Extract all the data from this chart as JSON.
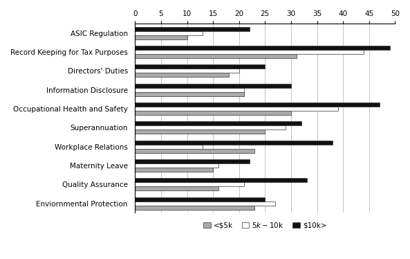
{
  "categories": [
    "ASIC Regulation",
    "Record Keeping for Tax Purposes",
    "Directors' Duties",
    "Information Disclosure",
    "Occupational Health and Safety",
    "Superannuation",
    "Workplace Relations",
    "Maternity Leave",
    "Quality Assurance",
    "Enviornmental Protection"
  ],
  "series": {
    "<$5k": [
      10,
      31,
      18,
      21,
      30,
      25,
      23,
      15,
      16,
      23
    ],
    "$5k-$10k": [
      13,
      44,
      20,
      21,
      39,
      29,
      13,
      16,
      21,
      27
    ],
    "$10k>": [
      22,
      49,
      25,
      30,
      47,
      32,
      38,
      22,
      33,
      25
    ]
  },
  "colors": {
    "<$5k": "#aaaaaa",
    "$5k-$10k": "#ffffff",
    "$10k>": "#111111"
  },
  "edgecolor": "#333333",
  "xlim": [
    0,
    50
  ],
  "xticks": [
    0,
    5,
    10,
    15,
    20,
    25,
    30,
    35,
    40,
    45,
    50
  ],
  "bar_height": 0.22,
  "legend_labels": [
    "<$5k",
    "$5k-$10k",
    "$10k>"
  ],
  "background_color": "#ffffff"
}
